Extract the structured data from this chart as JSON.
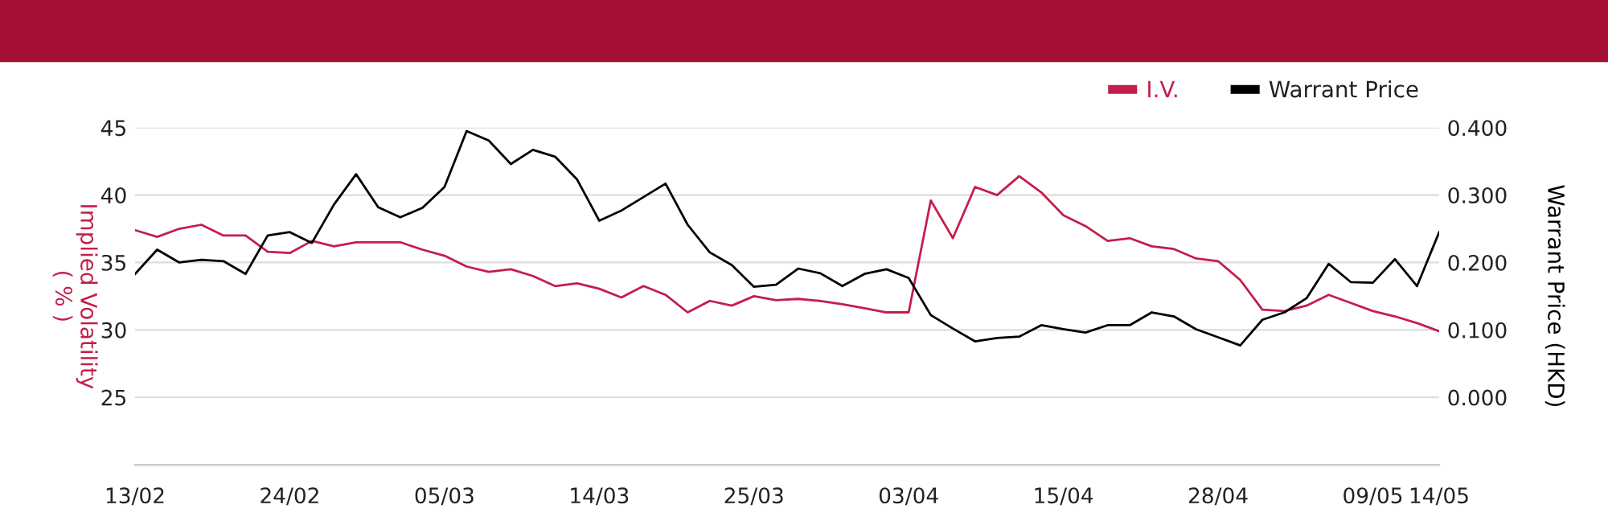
{
  "chart_data": {
    "type": "line",
    "categories": [
      "13/02",
      null,
      null,
      null,
      null,
      null,
      null,
      "24/02",
      null,
      null,
      null,
      null,
      null,
      null,
      "05/03",
      null,
      null,
      null,
      null,
      null,
      null,
      "14/03",
      null,
      null,
      null,
      null,
      null,
      null,
      "25/03",
      null,
      null,
      null,
      null,
      null,
      null,
      "03/04",
      null,
      null,
      null,
      null,
      null,
      null,
      "15/04",
      null,
      null,
      null,
      null,
      null,
      null,
      "28/04",
      null,
      null,
      null,
      null,
      null,
      null,
      "09/05",
      null,
      null,
      "14/05"
    ],
    "series": [
      {
        "name": "I.V.",
        "color": "#c41e4a",
        "values": [
          37.4,
          36.9,
          37.5,
          37.8,
          37.0,
          37.0,
          35.8,
          35.7,
          36.6,
          36.2,
          36.5,
          36.5,
          36.5,
          35.95,
          35.5,
          34.7,
          34.3,
          34.5,
          34.0,
          33.25,
          33.45,
          33.05,
          32.4,
          33.25,
          32.6,
          31.3,
          32.15,
          31.8,
          32.5,
          32.2,
          32.3,
          32.15,
          31.9,
          31.6,
          31.3,
          31.3,
          39.6,
          36.8,
          40.6,
          40.0,
          41.4,
          40.2,
          38.5,
          37.7,
          36.6,
          36.8,
          36.2,
          36.0,
          35.3,
          35.1,
          33.7,
          31.5,
          31.4,
          31.8,
          32.6,
          32.0,
          31.4,
          31.0,
          30.5,
          29.9
        ]
      },
      {
        "name": "Warrant Price",
        "color": "#000000",
        "axis": "y2",
        "values": [
          0.183,
          0.219,
          0.2,
          0.204,
          0.202,
          0.183,
          0.24,
          0.245,
          0.229,
          0.286,
          0.331,
          0.282,
          0.267,
          0.281,
          0.312,
          0.395,
          0.381,
          0.346,
          0.367,
          0.357,
          0.323,
          0.262,
          0.277,
          0.297,
          0.317,
          0.256,
          0.215,
          0.196,
          0.164,
          0.167,
          0.191,
          0.184,
          0.165,
          0.183,
          0.19,
          0.177,
          0.122,
          0.102,
          0.083,
          0.088,
          0.09,
          0.107,
          0.101,
          0.096,
          0.107,
          0.107,
          0.126,
          0.12,
          0.101,
          0.089,
          0.077,
          0.115,
          0.126,
          0.147,
          0.198,
          0.171,
          0.17,
          0.205,
          0.165,
          0.245
        ]
      }
    ],
    "ylabel": "Implied Volatility\n( % )",
    "y2label": "Warrant Price (HKD)",
    "ylim": [
      20,
      45
    ],
    "yticks": [
      25,
      30,
      35,
      40,
      45
    ],
    "y2lim": [
      -0.1,
      0.4
    ],
    "y2ticks": [
      {
        "value": 0,
        "label": "0.000"
      },
      {
        "value": 0.1,
        "label": "0.100"
      },
      {
        "value": 0.2,
        "label": "0.200"
      },
      {
        "value": 0.3,
        "label": "0.300"
      },
      {
        "value": 0.4,
        "label": "0.400"
      }
    ],
    "grid": "y",
    "legend": "top right",
    "marker": "none",
    "line_style": "solid"
  }
}
